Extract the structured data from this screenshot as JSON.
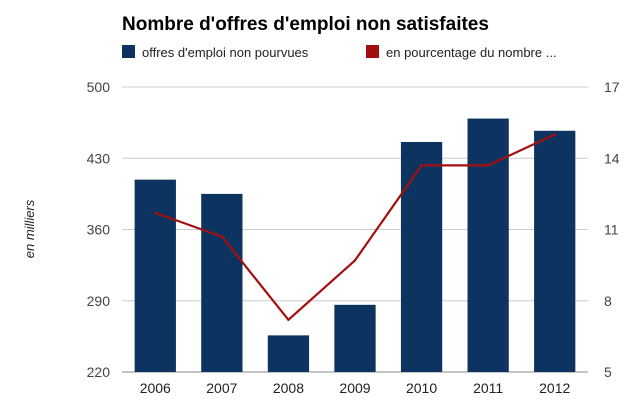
{
  "chart_data": {
    "type": "bar",
    "title": "Nombre d'offres d'emploi non satisfaites",
    "categories": [
      "2006",
      "2007",
      "2008",
      "2009",
      "2010",
      "2011",
      "2012"
    ],
    "series": [
      {
        "name": "offres d'emploi non pourvues",
        "type": "bar",
        "axis": "left",
        "color": "#0d3461",
        "values": [
          409,
          395,
          256,
          286,
          446,
          469,
          457
        ]
      },
      {
        "name": "en pourcentage du nombre ...",
        "type": "line",
        "axis": "right",
        "color": "#a30f0f",
        "values": [
          11.7,
          10.7,
          7.2,
          9.7,
          13.7,
          13.7,
          15.0
        ]
      }
    ],
    "ylabel": "en milliers",
    "y_left": {
      "min": 220,
      "max": 500,
      "ticks": [
        220,
        290,
        360,
        430,
        500
      ]
    },
    "y_right": {
      "min": 5,
      "max": 17,
      "ticks": [
        5,
        8,
        11,
        14,
        17
      ]
    },
    "grid": true,
    "legend_position": "top-left"
  }
}
